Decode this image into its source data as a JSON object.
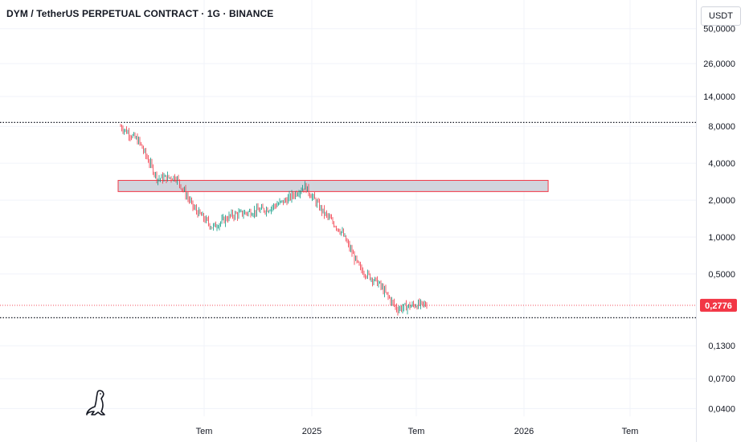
{
  "header": {
    "title": "DYM / TetherUS PERPETUAL CONTRACT · 1G · BINANCE",
    "currency": "USDT"
  },
  "colors": {
    "up": "#089981",
    "down": "#f23645",
    "grid": "#f0f3fa",
    "zone_fill": "#d1d4dc",
    "zone_border": "#f23645",
    "level_line": "#131722"
  },
  "chart_data": {
    "type": "candlestick",
    "y_scale": "log",
    "y_ticks": [
      50,
      26,
      14,
      8,
      4,
      2,
      1,
      0.5,
      0.13,
      0.07,
      0.04
    ],
    "y_tick_labels": [
      "50,0000",
      "26,0000",
      "14,0000",
      "8,0000",
      "4,0000",
      "2,0000",
      "1,0000",
      "0,5000",
      "0,1300",
      "0,0700",
      "0,0400"
    ],
    "x_ticks": [
      "Tem",
      "2025",
      "Tem",
      "2026",
      "Tem"
    ],
    "current_price": 0.2776,
    "current_price_label": "0,2776",
    "horizontal_levels": [
      8.6,
      0.22
    ],
    "zone": {
      "x_start": "2024-02",
      "x_end": "2026-01",
      "y_low": 2.35,
      "y_high": 2.9
    },
    "series": [
      {
        "t": "2024-02",
        "price": 8.0
      },
      {
        "t": "2024-03",
        "price": 6.0
      },
      {
        "t": "2024-04",
        "price": 3.0
      },
      {
        "t": "2024-05",
        "price": 3.1
      },
      {
        "t": "2024-06",
        "price": 1.7
      },
      {
        "t": "2024-07",
        "price": 1.2
      },
      {
        "t": "2024-08",
        "price": 1.5
      },
      {
        "t": "2024-09",
        "price": 1.6
      },
      {
        "t": "2024-10",
        "price": 1.7
      },
      {
        "t": "2024-11",
        "price": 2.0
      },
      {
        "t": "2024-12",
        "price": 2.6
      },
      {
        "t": "2025-01",
        "price": 1.6
      },
      {
        "t": "2025-02",
        "price": 1.1
      },
      {
        "t": "2025-03",
        "price": 0.55
      },
      {
        "t": "2025-04",
        "price": 0.42
      },
      {
        "t": "2025-05",
        "price": 0.26
      },
      {
        "t": "2025-06",
        "price": 0.28
      }
    ]
  }
}
